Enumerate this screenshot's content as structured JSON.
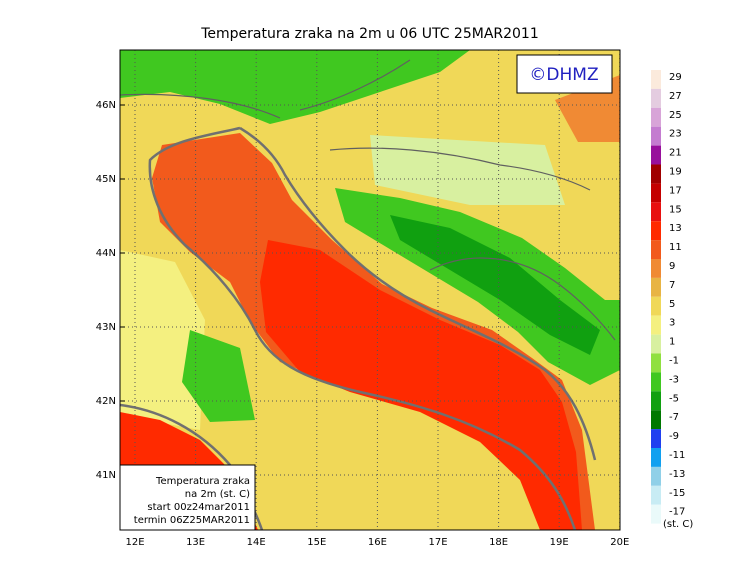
{
  "title": "Temperatura zraka na 2m u 06 UTC 25MAR2011",
  "copyright": "©DHMZ",
  "latitude_labels": [
    "46N",
    "45N",
    "44N",
    "43N",
    "42N",
    "41N"
  ],
  "longitude_labels": [
    "12E",
    "13E",
    "14E",
    "15E",
    "16E",
    "17E",
    "18E",
    "19E",
    "20E"
  ],
  "colorbar": {
    "labels": [
      "29",
      "27",
      "25",
      "23",
      "21",
      "19",
      "17",
      "15",
      "13",
      "11",
      "9",
      "7",
      "5",
      "3",
      "1",
      "-1",
      "-3",
      "-5",
      "-7",
      "-9",
      "-11",
      "-13",
      "-15",
      "-17"
    ],
    "colors": [
      "#fbeadc",
      "#e4cce0",
      "#d8a4d8",
      "#c47cd0",
      "#98109c",
      "#a00000",
      "#c40000",
      "#e81010",
      "#ff2a00",
      "#f25a1c",
      "#f08a34",
      "#e8b444",
      "#f0d858",
      "#f4f080",
      "#d8f0a0",
      "#90e040",
      "#40c820",
      "#10a010",
      "#007800",
      "#2040f0",
      "#10a0f0",
      "#90d0e8",
      "#c8ecf4",
      "#eafafa"
    ],
    "unit": "(st. C)"
  },
  "info_box": [
    "Temperatura zraka",
    "na 2m (st. C)",
    "start 00z24mar2011",
    "termin 06Z25MAR2011"
  ]
}
